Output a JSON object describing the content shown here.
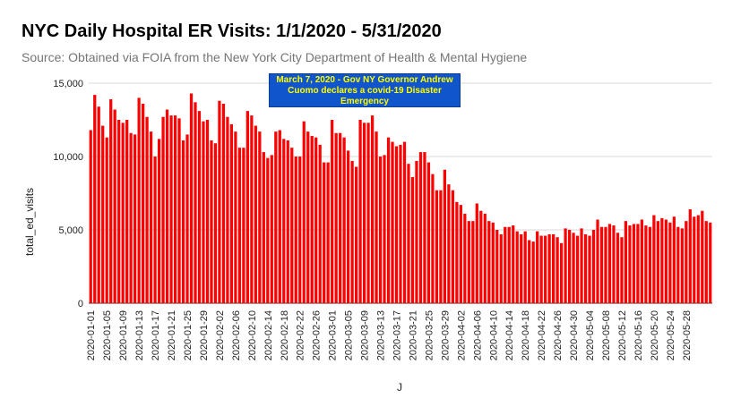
{
  "chart_data": {
    "type": "bar",
    "title": "NYC Daily Hospital ER Visits: 1/1/2020 - 5/31/2020",
    "subtitle": "Source: Obtained via FOIA from the New York City Department of Health & Mental Hygiene",
    "xlabel": "J",
    "ylabel": "total_ed_visits",
    "ylim": [
      0,
      15000
    ],
    "yticks": [
      0,
      5000,
      10000,
      15000
    ],
    "ytick_labels": [
      "0",
      "5,000",
      "10,000",
      "15,000"
    ],
    "grid": true,
    "bar_color": "#ff0000",
    "annotation": {
      "text": "March 7, 2020 - Gov NY Governor Andrew Cuomo declares a covid-19 Disaster Emergency",
      "background": "#1155cc",
      "text_color": "#ffff00"
    },
    "xtick_labels": [
      "2020-01-01",
      "2020-01-05",
      "2020-01-09",
      "2020-01-13",
      "2020-01-17",
      "2020-01-21",
      "2020-01-25",
      "2020-01-29",
      "2020-02-02",
      "2020-02-06",
      "2020-02-10",
      "2020-02-14",
      "2020-02-18",
      "2020-02-22",
      "2020-02-26",
      "2020-03-01",
      "2020-03-05",
      "2020-03-09",
      "2020-03-13",
      "2020-03-17",
      "2020-03-21",
      "2020-03-25",
      "2020-03-29",
      "2020-04-02",
      "2020-04-06",
      "2020-04-10",
      "2020-04-14",
      "2020-04-18",
      "2020-04-22",
      "2020-04-26",
      "2020-04-30",
      "2020-05-04",
      "2020-05-08",
      "2020-05-12",
      "2020-05-16",
      "2020-05-20",
      "2020-05-24",
      "2020-05-28"
    ],
    "x_start": "2020-01-01",
    "x_end": "2020-05-31",
    "values": [
      11800,
      14200,
      13400,
      12100,
      11300,
      13900,
      13200,
      12500,
      12300,
      12500,
      11600,
      11500,
      14000,
      13600,
      12700,
      11700,
      10000,
      11200,
      12700,
      13200,
      12800,
      12800,
      12600,
      11100,
      11500,
      14300,
      13700,
      13100,
      12400,
      12500,
      11100,
      10900,
      13800,
      13600,
      12700,
      12200,
      11700,
      10600,
      10600,
      13100,
      12800,
      12100,
      11700,
      10300,
      9900,
      10100,
      11700,
      11800,
      11200,
      11100,
      10600,
      10000,
      10000,
      12400,
      11700,
      11400,
      11300,
      10800,
      9600,
      9600,
      12500,
      11600,
      11600,
      11300,
      10400,
      9700,
      9300,
      12500,
      12300,
      12300,
      12800,
      11700,
      10000,
      10100,
      11300,
      11000,
      10700,
      10800,
      11000,
      9500,
      8600,
      9700,
      10300,
      10300,
      9600,
      8800,
      7700,
      7700,
      9100,
      8100,
      7700,
      6900,
      6700,
      6100,
      5600,
      5600,
      6800,
      6300,
      6100,
      5600,
      5500,
      5000,
      4700,
      5200,
      5200,
      5300,
      4900,
      4700,
      4900,
      4300,
      4200,
      4900,
      4600,
      4600,
      4700,
      4700,
      4500,
      4100,
      5100,
      5000,
      4800,
      4600,
      5100,
      4700,
      4600,
      5000,
      5700,
      5200,
      5200,
      5400,
      5300,
      4800,
      4500,
      5600,
      5300,
      5400,
      5400,
      5700,
      5300,
      5200,
      6000,
      5600,
      5800,
      5700,
      5500,
      5900,
      5200,
      5100,
      5600,
      6400,
      5900,
      6000,
      6300,
      5600,
      5500
    ]
  }
}
